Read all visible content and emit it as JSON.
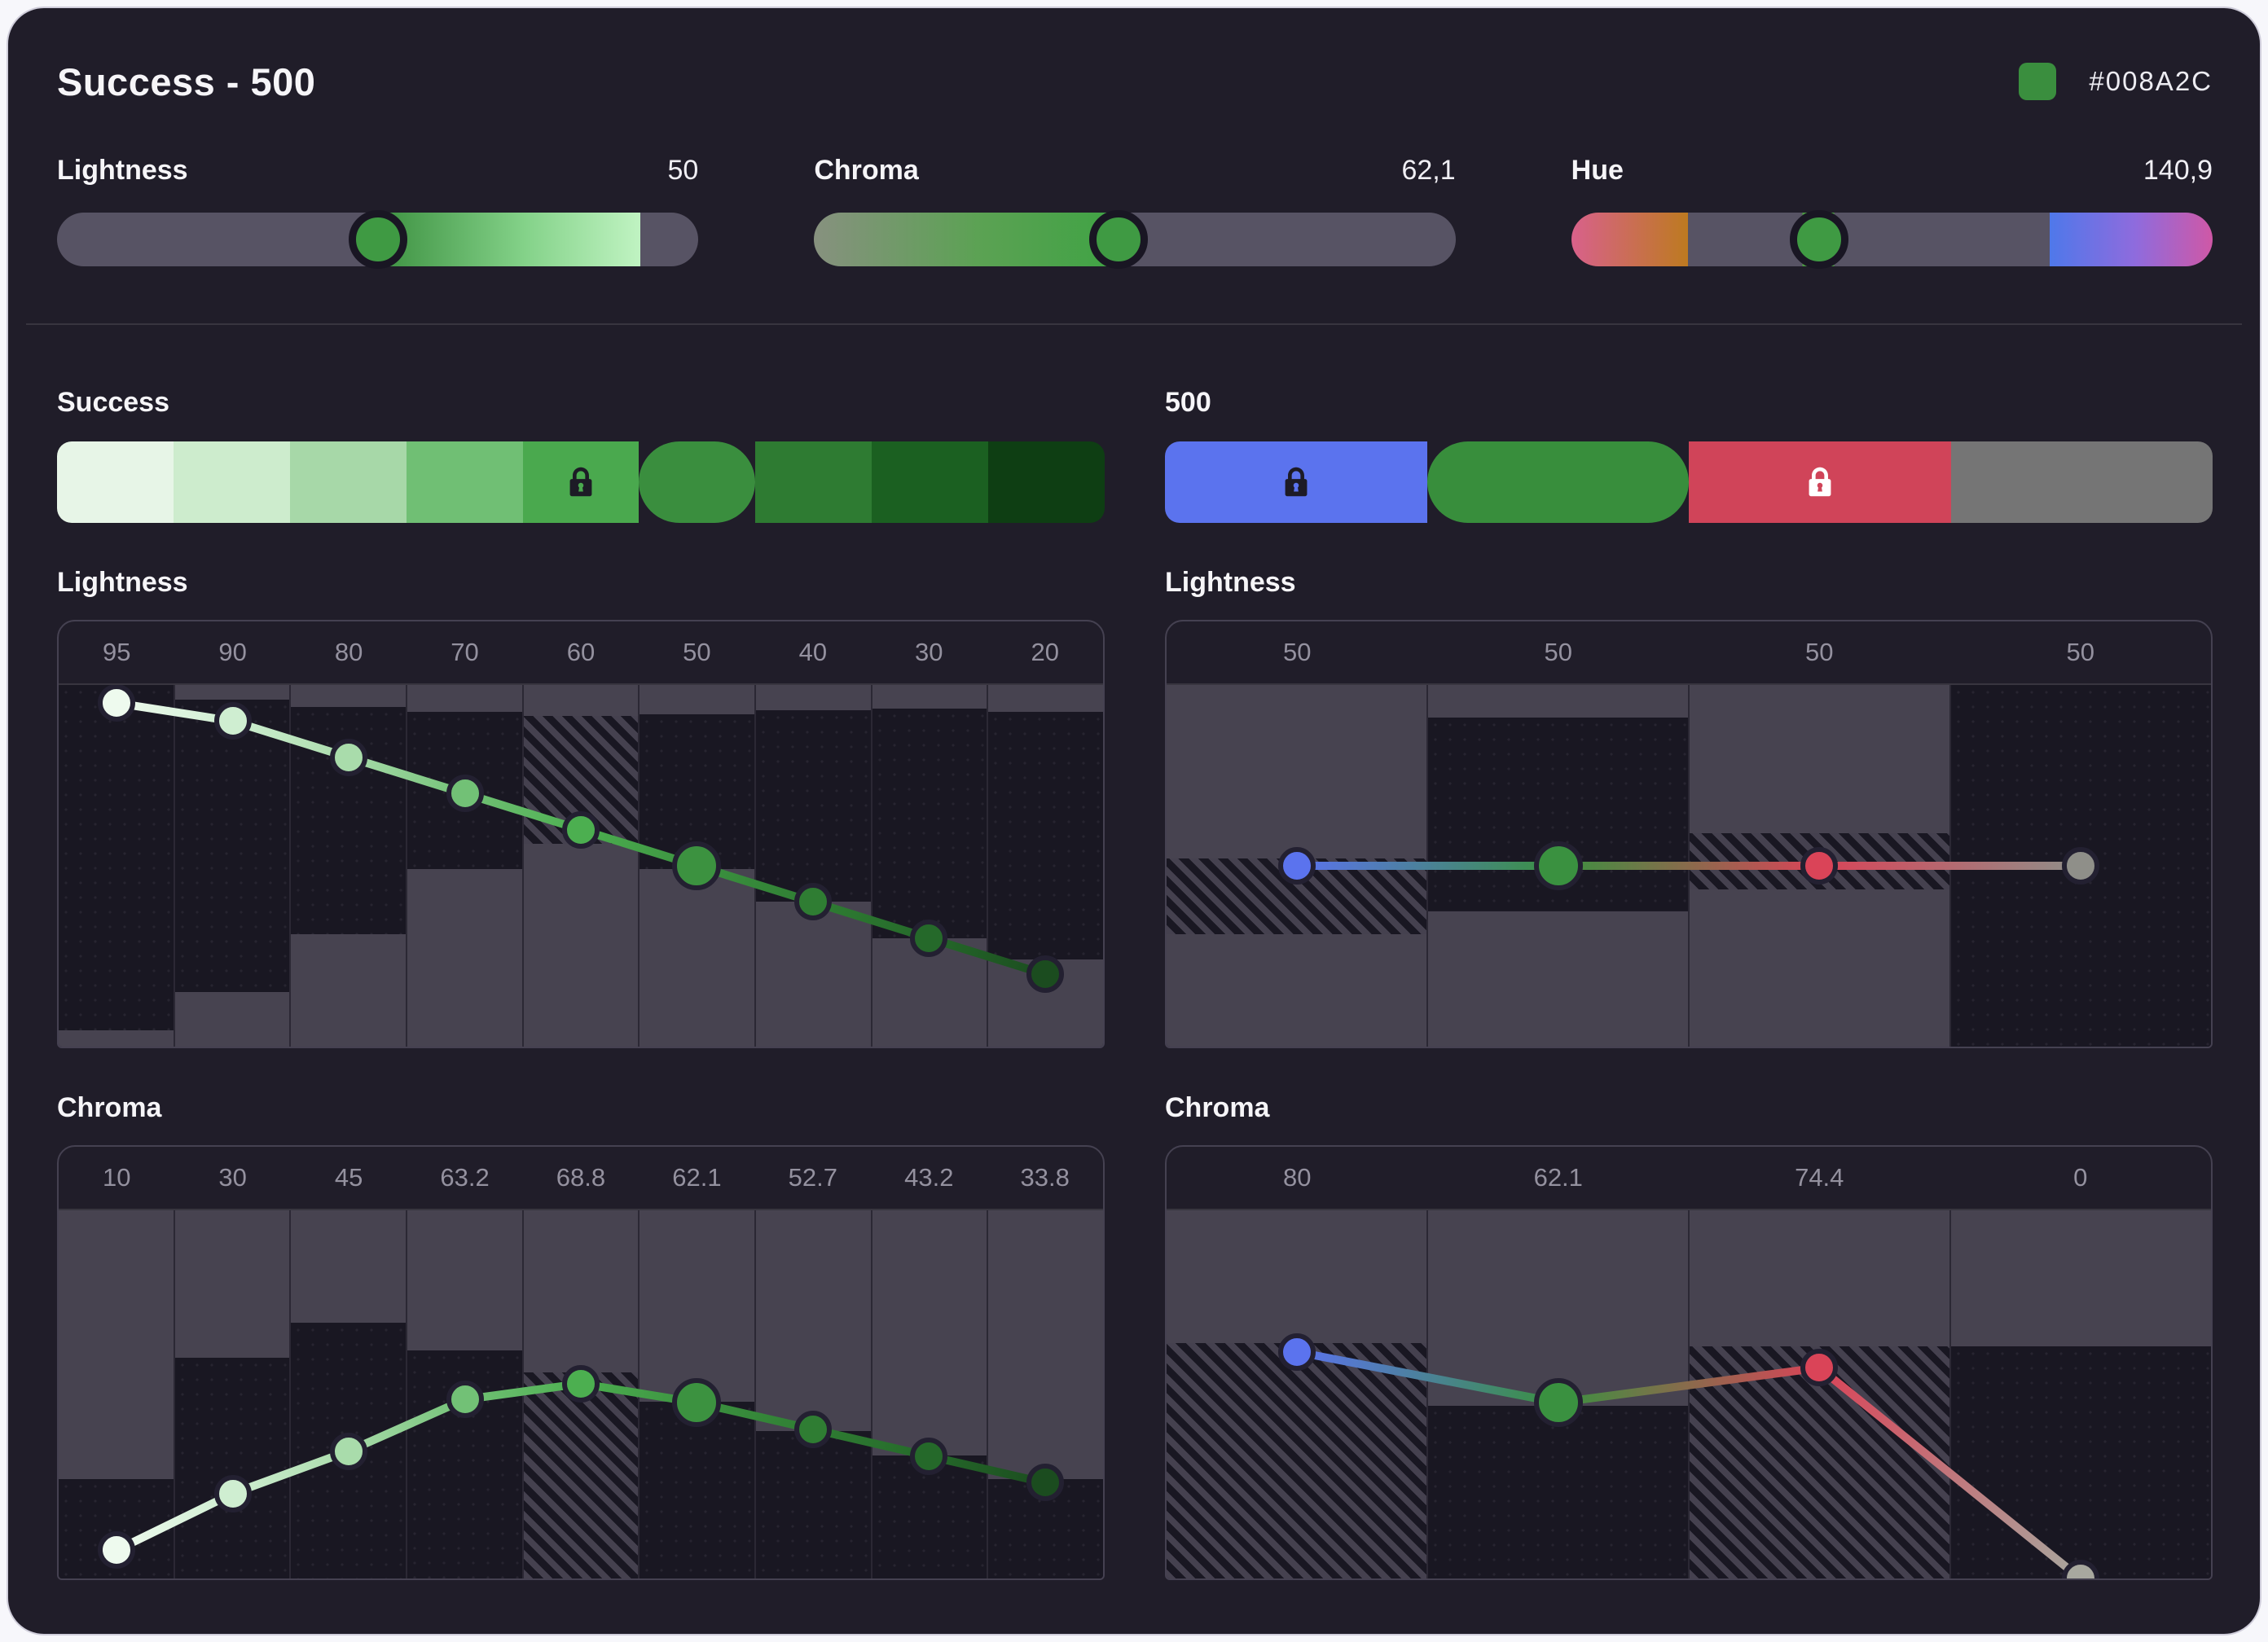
{
  "header": {
    "title": "Success - 500",
    "hex": "#008A2C",
    "swatch_color": "#3a8e3e"
  },
  "colors": {
    "lock_dark": "#1d1b26",
    "lock_light": "#ffffff",
    "dot_ring": "#232031",
    "thumb_fill": "#3f9a43"
  },
  "sliders": [
    {
      "label": "Lightness",
      "value": "50",
      "thumb_pos": 50,
      "track": "linear-gradient(90deg,#575364 0%,#575364 50%,#3c9040 50%,#84d289 73%,#c0f3c2 91%,#575364 91%,#575364 100%)"
    },
    {
      "label": "Chroma",
      "value": "62,1",
      "thumb_pos": 47.5,
      "track": "linear-gradient(90deg,#87917f 0%,#5ba253 26%,#3fa344 47.5%,#575364 47.5%,#575364 100%)"
    },
    {
      "label": "Hue",
      "value": "140,9",
      "thumb_pos": 38.7,
      "track": "linear-gradient(90deg,#d8618b 0%,#bd7a20 18.2%,#575364 18.2%,#575364 36%,#4a9a41 36%,#4a9a41 41%,#575364 41%,#575364 74.6%,#4f78ea 74.6%,#8f6bdd 88%,#cf58a6 100%)"
    }
  ],
  "palettes": [
    {
      "name": "Success",
      "items": [
        {
          "color": "#e7f5e7"
        },
        {
          "color": "#cdeccd"
        },
        {
          "color": "#a7d8a8"
        },
        {
          "color": "#70bf74"
        },
        {
          "color": "#4aa94e",
          "locked": true,
          "lock": "dark"
        },
        {
          "color": "#3a8e3e",
          "selected": true
        },
        {
          "color": "#2e7b32"
        },
        {
          "color": "#1b6021"
        },
        {
          "color": "#0e3e13"
        }
      ]
    },
    {
      "name": "500",
      "items": [
        {
          "color": "#5b73ee",
          "locked": true,
          "lock": "dark"
        },
        {
          "color": "#388e3c",
          "selected": true
        },
        {
          "color": "#d04459",
          "locked": true,
          "lock": "light"
        },
        {
          "color": "#757575"
        }
      ]
    }
  ],
  "charts": [
    {
      "title": "Lightness",
      "plot_class": "h1",
      "ylim": [
        0,
        100
      ],
      "columns": [
        {
          "label": "95",
          "segments": [
            {
              "type": "dark",
              "from": 0,
              "to": 0.955
            },
            {
              "type": "gray",
              "from": 0.955,
              "to": 1
            }
          ]
        },
        {
          "label": "90",
          "segments": [
            {
              "type": "gray",
              "from": 0,
              "to": 0.04
            },
            {
              "type": "dark",
              "from": 0.04,
              "to": 0.85
            },
            {
              "type": "gray",
              "from": 0.85,
              "to": 1
            }
          ]
        },
        {
          "label": "80",
          "segments": [
            {
              "type": "gray",
              "from": 0,
              "to": 0.06
            },
            {
              "type": "dark",
              "from": 0.06,
              "to": 0.69
            },
            {
              "type": "gray",
              "from": 0.69,
              "to": 1
            }
          ]
        },
        {
          "label": "70",
          "segments": [
            {
              "type": "gray",
              "from": 0,
              "to": 0.075
            },
            {
              "type": "dark",
              "from": 0.075,
              "to": 0.51
            },
            {
              "type": "gray",
              "from": 0.51,
              "to": 1
            }
          ]
        },
        {
          "label": "60",
          "segments": [
            {
              "type": "gray",
              "from": 0,
              "to": 0.085
            },
            {
              "type": "hatch",
              "from": 0.085,
              "to": 0.44
            },
            {
              "type": "gray",
              "from": 0.44,
              "to": 1
            }
          ]
        },
        {
          "label": "50",
          "segments": [
            {
              "type": "gray",
              "from": 0,
              "to": 0.08
            },
            {
              "type": "dark",
              "from": 0.08,
              "to": 0.51
            },
            {
              "type": "gray",
              "from": 0.51,
              "to": 1
            }
          ]
        },
        {
          "label": "40",
          "segments": [
            {
              "type": "gray",
              "from": 0,
              "to": 0.07
            },
            {
              "type": "dark",
              "from": 0.07,
              "to": 0.6
            },
            {
              "type": "gray",
              "from": 0.6,
              "to": 1
            }
          ]
        },
        {
          "label": "30",
          "segments": [
            {
              "type": "gray",
              "from": 0,
              "to": 0.065
            },
            {
              "type": "dark",
              "from": 0.065,
              "to": 0.7
            },
            {
              "type": "gray",
              "from": 0.7,
              "to": 1
            }
          ]
        },
        {
          "label": "20",
          "segments": [
            {
              "type": "gray",
              "from": 0,
              "to": 0.075
            },
            {
              "type": "dark",
              "from": 0.075,
              "to": 0.76
            },
            {
              "type": "gray",
              "from": 0.76,
              "to": 1
            }
          ]
        }
      ],
      "points": [
        {
          "value": 95,
          "color": "#eefaee"
        },
        {
          "value": 90,
          "color": "#cfeed1"
        },
        {
          "value": 80,
          "color": "#a9dcab"
        },
        {
          "value": 70,
          "color": "#72c176"
        },
        {
          "value": 60,
          "color": "#4caf50"
        },
        {
          "value": 50,
          "color": "#3c9240",
          "selected": true
        },
        {
          "value": 40,
          "color": "#2f7d33"
        },
        {
          "value": 30,
          "color": "#25692a"
        },
        {
          "value": 20,
          "color": "#1b4c1f"
        }
      ]
    },
    {
      "title": "Lightness",
      "plot_class": "h1",
      "ylim": [
        0,
        100
      ],
      "columns": [
        {
          "label": "50",
          "segments": [
            {
              "type": "gray",
              "from": 0,
              "to": 0.48
            },
            {
              "type": "hatch",
              "from": 0.48,
              "to": 0.69
            },
            {
              "type": "gray",
              "from": 0.69,
              "to": 1
            }
          ]
        },
        {
          "label": "50",
          "segments": [
            {
              "type": "gray",
              "from": 0,
              "to": 0.09
            },
            {
              "type": "dark",
              "from": 0.09,
              "to": 0.625
            },
            {
              "type": "gray",
              "from": 0.625,
              "to": 1
            }
          ]
        },
        {
          "label": "50",
          "segments": [
            {
              "type": "gray",
              "from": 0,
              "to": 0.41
            },
            {
              "type": "hatch",
              "from": 0.41,
              "to": 0.565
            },
            {
              "type": "gray",
              "from": 0.565,
              "to": 1
            }
          ]
        },
        {
          "label": "50",
          "segments": [
            {
              "type": "dark",
              "from": 0,
              "to": 1
            }
          ]
        }
      ],
      "points": [
        {
          "value": 50,
          "color": "#5b73ee"
        },
        {
          "value": 50,
          "color": "#3a9140",
          "selected": true
        },
        {
          "value": 50,
          "color": "#da4458"
        },
        {
          "value": 50,
          "color": "#8f8f89"
        }
      ]
    },
    {
      "title": "Chroma",
      "plot_class": "h2",
      "ylim": [
        0,
        130
      ],
      "columns": [
        {
          "label": "10",
          "segments": [
            {
              "type": "gray",
              "from": 0,
              "to": 0.73
            },
            {
              "type": "dark",
              "from": 0.73,
              "to": 1
            }
          ]
        },
        {
          "label": "30",
          "segments": [
            {
              "type": "gray",
              "from": 0,
              "to": 0.4
            },
            {
              "type": "dark",
              "from": 0.4,
              "to": 1
            }
          ]
        },
        {
          "label": "45",
          "segments": [
            {
              "type": "gray",
              "from": 0,
              "to": 0.305
            },
            {
              "type": "dark",
              "from": 0.305,
              "to": 1
            }
          ]
        },
        {
          "label": "63.2",
          "segments": [
            {
              "type": "gray",
              "from": 0,
              "to": 0.38
            },
            {
              "type": "dark",
              "from": 0.38,
              "to": 1
            }
          ]
        },
        {
          "label": "68.8",
          "segments": [
            {
              "type": "gray",
              "from": 0,
              "to": 0.44
            },
            {
              "type": "hatch",
              "from": 0.44,
              "to": 1
            }
          ]
        },
        {
          "label": "62.1",
          "segments": [
            {
              "type": "gray",
              "from": 0,
              "to": 0.52
            },
            {
              "type": "dark",
              "from": 0.52,
              "to": 1
            }
          ]
        },
        {
          "label": "52.7",
          "segments": [
            {
              "type": "gray",
              "from": 0,
              "to": 0.6
            },
            {
              "type": "dark",
              "from": 0.6,
              "to": 1
            }
          ]
        },
        {
          "label": "43.2",
          "segments": [
            {
              "type": "gray",
              "from": 0,
              "to": 0.665
            },
            {
              "type": "dark",
              "from": 0.665,
              "to": 1
            }
          ]
        },
        {
          "label": "33.8",
          "segments": [
            {
              "type": "gray",
              "from": 0,
              "to": 0.73
            },
            {
              "type": "dark",
              "from": 0.73,
              "to": 1
            }
          ]
        }
      ],
      "points": [
        {
          "value": 10,
          "color": "#eefaee"
        },
        {
          "value": 30,
          "color": "#cfeed1"
        },
        {
          "value": 45,
          "color": "#a9dcab"
        },
        {
          "value": 63.2,
          "color": "#72c176"
        },
        {
          "value": 68.8,
          "color": "#4caf50"
        },
        {
          "value": 62.1,
          "color": "#3c9240",
          "selected": true
        },
        {
          "value": 52.7,
          "color": "#2f7d33"
        },
        {
          "value": 43.2,
          "color": "#25692a"
        },
        {
          "value": 33.8,
          "color": "#1b4c1f"
        }
      ]
    },
    {
      "title": "Chroma",
      "plot_class": "h2",
      "ylim": [
        0,
        130
      ],
      "columns": [
        {
          "label": "80",
          "segments": [
            {
              "type": "gray",
              "from": 0,
              "to": 0.36
            },
            {
              "type": "hatch",
              "from": 0.36,
              "to": 1
            }
          ]
        },
        {
          "label": "62.1",
          "segments": [
            {
              "type": "gray",
              "from": 0,
              "to": 0.53
            },
            {
              "type": "dark",
              "from": 0.53,
              "to": 1
            }
          ]
        },
        {
          "label": "74.4",
          "segments": [
            {
              "type": "gray",
              "from": 0,
              "to": 0.37
            },
            {
              "type": "hatch",
              "from": 0.37,
              "to": 1
            }
          ]
        },
        {
          "label": "0",
          "segments": [
            {
              "type": "gray",
              "from": 0,
              "to": 0.37
            },
            {
              "type": "dark",
              "from": 0.37,
              "to": 1
            }
          ]
        }
      ],
      "points": [
        {
          "value": 80,
          "color": "#5b73ee"
        },
        {
          "value": 62.1,
          "color": "#3a9140",
          "selected": true
        },
        {
          "value": 74.4,
          "color": "#da4458"
        },
        {
          "value": 0,
          "color": "#a8a89f"
        }
      ]
    }
  ]
}
